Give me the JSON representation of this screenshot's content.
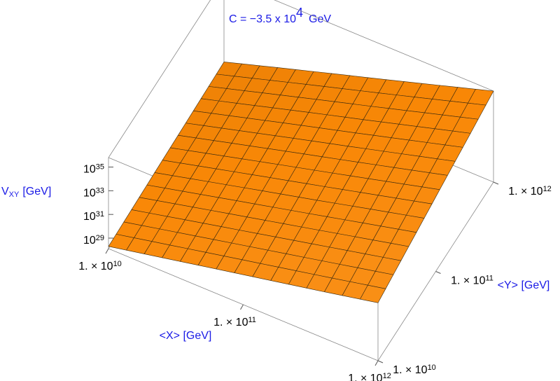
{
  "chart_data": {
    "type": "surface3d",
    "title": "C = −3.5 x 10",
    "title_exponent": "4",
    "title_suffix": "GeV",
    "xlabel": "<X> [GeV]",
    "ylabel": "<Y> [GeV]",
    "zlabel": "V",
    "zlabel_sub": "XY",
    "zlabel_suffix": "[GeV]",
    "xscale": "log",
    "yscale": "log",
    "zscale": "log",
    "xlim": [
      10000000000.0,
      1000000000000.0
    ],
    "ylim": [
      10000000000.0,
      1000000000000.0
    ],
    "zlim": [
      1.3e+28,
      6.3e+35
    ],
    "xticks": [
      {
        "value": 10000000000.0,
        "label": "1. × 10",
        "exponent": "10"
      },
      {
        "value": 100000000000.0,
        "label": "1. × 10",
        "exponent": "11"
      },
      {
        "value": 1000000000000.0,
        "label": "1. × 10",
        "exponent": "12"
      }
    ],
    "yticks": [
      {
        "value": 10000000000.0,
        "label": "1. × 10",
        "exponent": "10"
      },
      {
        "value": 100000000000.0,
        "label": "1. × 10",
        "exponent": "11"
      },
      {
        "value": 1000000000000.0,
        "label": "1. × 10",
        "exponent": "12"
      }
    ],
    "zticks": [
      {
        "value": 1e+29,
        "label": "10",
        "exponent": "29"
      },
      {
        "value": 1e+31,
        "label": "10",
        "exponent": "31"
      },
      {
        "value": 1e+33,
        "label": "10",
        "exponent": "33"
      },
      {
        "value": 1e+35,
        "label": "10",
        "exponent": "35"
      }
    ],
    "color": "#f7991f",
    "x": [
      10000000000.0,
      25000000000.0,
      63000000000.0,
      160000000000.0,
      400000000000.0,
      1000000000000.0
    ],
    "y": [
      10000000000.0,
      25000000000.0,
      63000000000.0,
      160000000000.0,
      400000000000.0,
      1000000000000.0
    ],
    "z": [
      [
        2e+28,
        1.7e+29,
        1.5e+30,
        1.3e+31,
        1.1e+32,
        1e+33
      ],
      [
        2.5e+28,
        2.7e+29,
        2.9e+30,
        3.2e+31,
        3.4e+32,
        3.6e+33
      ],
      [
        3.2e+28,
        4.2e+29,
        5.6e+30,
        7.4e+31,
        1e+33,
        1.3e+34
      ],
      [
        4e+28,
        6.6e+29,
        1.1e+31,
        1.8e+32,
        2.9e+33,
        4.8e+34
      ],
      [
        5e+28,
        1e+30,
        2.1e+31,
        4.2e+32,
        8.5e+33,
        1.7e+35
      ],
      [
        6.3e+28,
        1.6e+30,
        4e+31,
        1e+33,
        2.5e+34,
        6.3e+35
      ]
    ]
  }
}
